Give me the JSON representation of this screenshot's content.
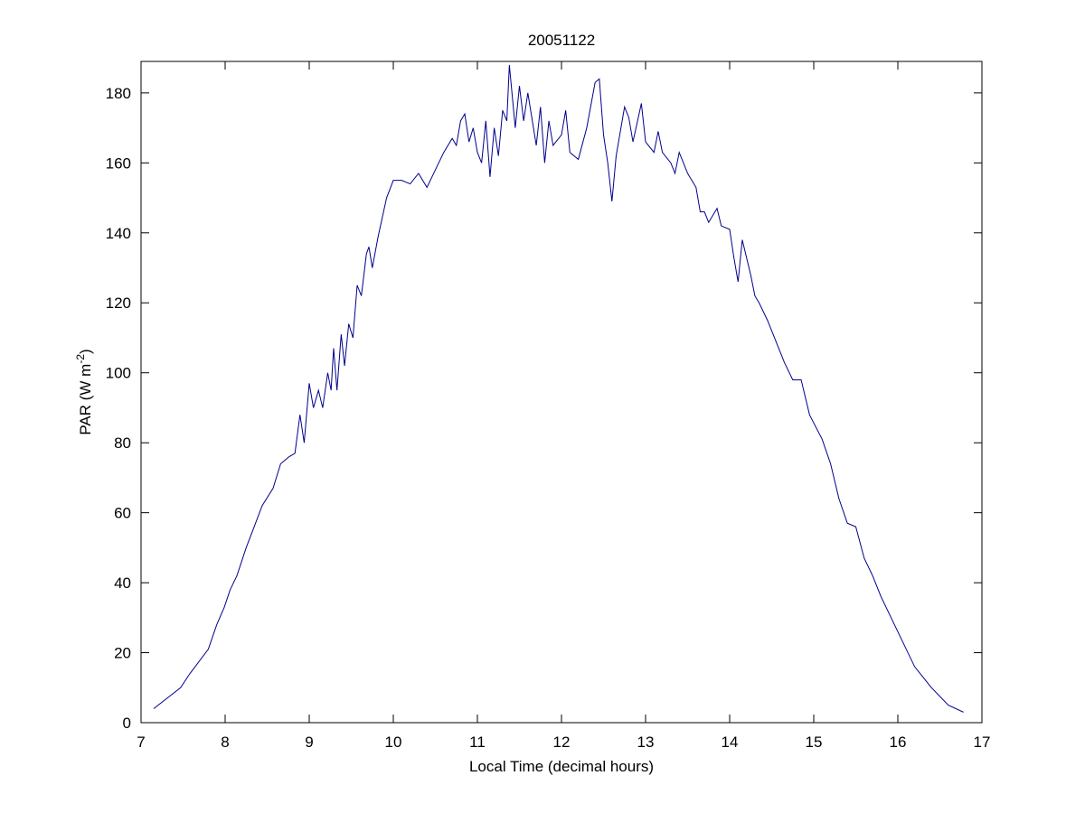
{
  "chart_data": {
    "type": "line",
    "title": "20051122",
    "xlabel": "Local Time (decimal hours)",
    "ylabel": {
      "text": "PAR (W m",
      "superscript": "-2",
      "suffix": ")"
    },
    "xlim": [
      7,
      17
    ],
    "ylim": [
      0,
      189
    ],
    "xticks": [
      7,
      8,
      9,
      10,
      11,
      12,
      13,
      14,
      15,
      16,
      17
    ],
    "yticks": [
      0,
      20,
      40,
      60,
      80,
      100,
      120,
      140,
      160,
      180
    ],
    "grid": false,
    "series": [
      {
        "color": "#00008b",
        "x": [
          7.15,
          7.47,
          7.58,
          7.8,
          7.9,
          7.99,
          8.06,
          8.14,
          8.25,
          8.33,
          8.44,
          8.57,
          8.66,
          8.76,
          8.83,
          8.89,
          8.94,
          9.0,
          9.05,
          9.11,
          9.16,
          9.22,
          9.26,
          9.29,
          9.33,
          9.38,
          9.42,
          9.47,
          9.52,
          9.57,
          9.62,
          9.68,
          9.71,
          9.75,
          9.82,
          9.92,
          10.0,
          10.1,
          10.2,
          10.3,
          10.4,
          10.5,
          10.6,
          10.7,
          10.75,
          10.8,
          10.85,
          10.9,
          10.95,
          11.0,
          11.05,
          11.1,
          11.15,
          11.2,
          11.25,
          11.3,
          11.35,
          11.38,
          11.45,
          11.5,
          11.55,
          11.6,
          11.7,
          11.75,
          11.8,
          11.85,
          11.9,
          12.0,
          12.05,
          12.1,
          12.2,
          12.3,
          12.4,
          12.45,
          12.5,
          12.55,
          12.6,
          12.65,
          12.75,
          12.8,
          12.85,
          12.95,
          13.0,
          13.1,
          13.15,
          13.2,
          13.3,
          13.35,
          13.4,
          13.5,
          13.6,
          13.65,
          13.7,
          13.75,
          13.85,
          13.9,
          14.0,
          14.05,
          14.1,
          14.15,
          14.25,
          14.3,
          14.35,
          14.45,
          14.55,
          14.65,
          14.75,
          14.85,
          14.95,
          15.1,
          15.2,
          15.3,
          15.4,
          15.5,
          15.6,
          15.7,
          15.8,
          16.0,
          16.2,
          16.4,
          16.6,
          16.78
        ],
        "values": [
          4,
          10,
          14,
          21,
          28,
          33,
          38,
          42,
          50,
          55,
          62,
          67,
          74,
          76,
          77,
          88,
          80,
          97,
          90,
          95,
          90,
          100,
          95,
          107,
          95,
          111,
          102,
          114,
          110,
          125,
          122,
          134,
          136,
          130,
          139,
          150,
          155,
          155,
          154,
          157,
          153,
          158,
          163,
          167,
          165,
          172,
          174,
          166,
          170,
          163,
          160,
          172,
          156,
          170,
          162,
          175,
          172,
          188,
          170,
          182,
          172,
          180,
          165,
          176,
          160,
          172,
          165,
          168,
          175,
          163,
          161,
          170,
          183,
          184,
          168,
          160,
          149,
          162,
          176,
          173,
          166,
          177,
          166,
          163,
          169,
          163,
          160,
          157,
          163,
          157,
          153,
          146,
          146,
          143,
          147,
          142,
          141,
          133,
          126,
          138,
          128,
          122,
          120,
          115,
          109,
          103,
          98,
          98,
          88,
          81,
          74,
          64,
          57,
          56,
          47,
          42,
          36,
          26,
          16,
          10,
          5,
          3
        ]
      }
    ]
  }
}
